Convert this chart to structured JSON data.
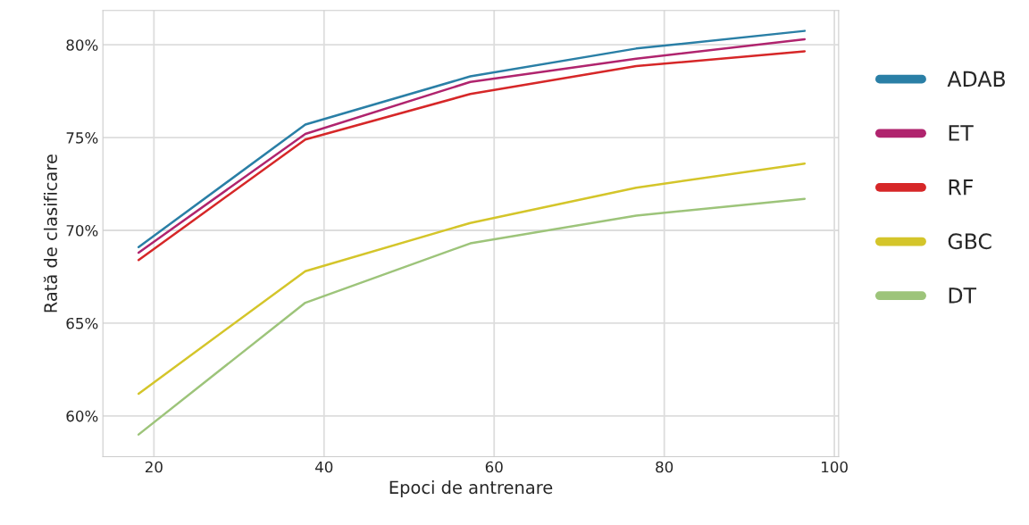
{
  "chart_data": {
    "type": "line",
    "xlabel": "Epoci de antrenare",
    "ylabel": "Rată de clasificare",
    "x": [
      18.2,
      37.8,
      57.2,
      76.7,
      96.5
    ],
    "series": [
      {
        "name": "ADAB",
        "color": "#2a7fa6",
        "values": [
          69.1,
          75.7,
          78.3,
          79.8,
          80.75
        ]
      },
      {
        "name": "ET",
        "color": "#b0246e",
        "values": [
          68.8,
          75.2,
          78.0,
          79.25,
          80.3
        ]
      },
      {
        "name": "RF",
        "color": "#d62728",
        "values": [
          68.4,
          74.9,
          77.35,
          78.85,
          79.65
        ]
      },
      {
        "name": "GBC",
        "color": "#d4c52a",
        "values": [
          61.2,
          67.8,
          70.4,
          72.3,
          73.6
        ]
      },
      {
        "name": "DT",
        "color": "#9dc47a",
        "values": [
          59.0,
          66.1,
          69.3,
          70.8,
          71.7
        ]
      }
    ],
    "xlim": [
      14,
      100.5
    ],
    "xticks": [
      20,
      40,
      60,
      80,
      100
    ],
    "ylim": [
      57.8,
      81.85
    ],
    "yticks": [
      {
        "value": 60,
        "label": "60%"
      },
      {
        "value": 65,
        "label": "65%"
      },
      {
        "value": 70,
        "label": "70%"
      },
      {
        "value": 75,
        "label": "75%"
      },
      {
        "value": 80,
        "label": "80%"
      }
    ],
    "grid": true,
    "legend": "right",
    "marker": "none",
    "line_style": "solid"
  }
}
